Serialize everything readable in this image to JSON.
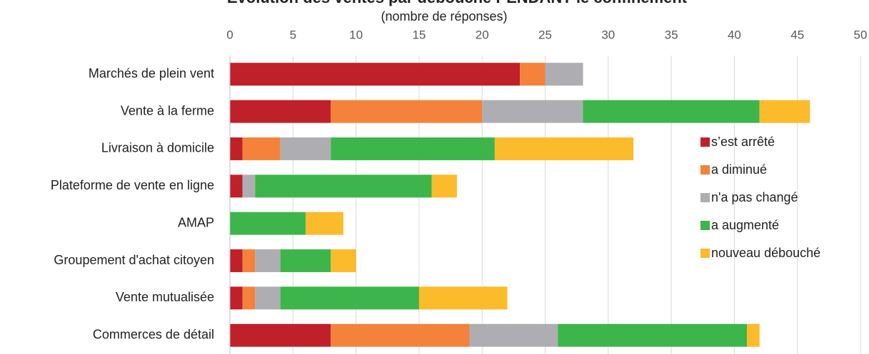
{
  "chart_data": {
    "type": "stacked-barh",
    "title": "Evolution des ventes par débouché PENDANT le confinement",
    "subtitle": "(nombre de réponses)",
    "categories": [
      "Marchés de plein vent",
      "Vente à la ferme",
      "Livraison à domicile",
      "Plateforme de vente en ligne",
      "AMAP",
      "Groupement d'achat citoyen",
      "Vente mutualisée",
      "Commerces de détail"
    ],
    "series": [
      {
        "name": "s’est arrêté",
        "color": "#c0202a",
        "values": [
          23,
          8,
          1,
          1,
          0,
          1,
          1,
          8
        ]
      },
      {
        "name": "a diminué",
        "color": "#f4823a",
        "values": [
          2,
          12,
          3,
          0,
          0,
          1,
          1,
          11
        ]
      },
      {
        "name": "n'a pas changé",
        "color": "#aeaeb2",
        "values": [
          3,
          8,
          4,
          1,
          0,
          2,
          2,
          7
        ]
      },
      {
        "name": "a augmenté",
        "color": "#3db54a",
        "values": [
          0,
          14,
          13,
          14,
          6,
          4,
          11,
          15
        ]
      },
      {
        "name": "nouveau débouché",
        "color": "#fbbb2a",
        "values": [
          0,
          4,
          11,
          2,
          3,
          2,
          7,
          1
        ]
      }
    ],
    "xlim": [
      0,
      50
    ],
    "xticks": [
      0,
      5,
      10,
      15,
      20,
      25,
      30,
      35,
      40,
      45,
      50
    ],
    "grid": true,
    "legend": "right"
  }
}
